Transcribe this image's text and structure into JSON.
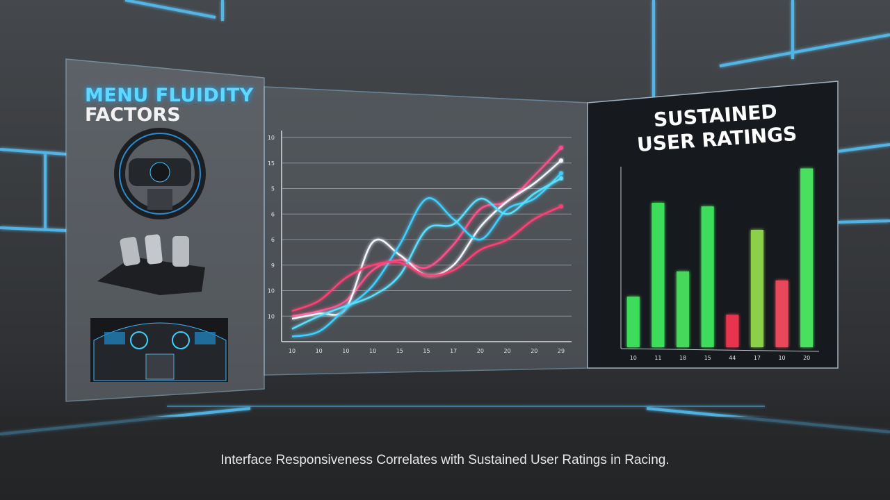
{
  "left_panel": {
    "title_line1": "MENU FLUIDITY",
    "title_line2": "FACTORS"
  },
  "chart_data": [
    {
      "type": "line",
      "categories": [
        "10",
        "10",
        "10",
        "10",
        "15",
        "15",
        "17",
        "20",
        "20",
        "20",
        "29"
      ],
      "ylim": [
        0,
        8
      ],
      "yticks": [
        {
          "value": 1,
          "label": "10"
        },
        {
          "value": 2,
          "label": "10"
        },
        {
          "value": 3,
          "label": "9"
        },
        {
          "value": 4,
          "label": "6"
        },
        {
          "value": 5,
          "label": "6"
        },
        {
          "value": 6,
          "label": "5"
        },
        {
          "value": 7,
          "label": "15"
        },
        {
          "value": 8,
          "label": "10"
        }
      ],
      "grid": true,
      "series": [
        {
          "color": "#ff4f8b",
          "values": [
            1.0,
            1.2,
            1.6,
            2.8,
            3.2,
            2.9,
            3.8,
            5.2,
            5.5,
            6.5,
            7.6
          ]
        },
        {
          "color": "#f4f6ff",
          "values": [
            0.9,
            1.1,
            1.3,
            3.9,
            3.4,
            2.6,
            3.0,
            4.5,
            5.5,
            6.2,
            7.1
          ]
        },
        {
          "color": "#3fd0ff",
          "values": [
            0.2,
            0.4,
            1.3,
            2.2,
            3.8,
            5.6,
            4.8,
            4.0,
            5.2,
            5.6,
            6.6
          ]
        },
        {
          "color": "#5ae0ff",
          "values": [
            0.5,
            1.0,
            1.4,
            1.8,
            2.6,
            4.4,
            4.6,
            5.6,
            5.0,
            5.8,
            6.4
          ]
        },
        {
          "color": "#ff3f74",
          "values": [
            1.2,
            1.6,
            2.5,
            3.0,
            3.1,
            2.6,
            2.8,
            3.6,
            4.0,
            4.8,
            5.3
          ]
        }
      ]
    },
    {
      "type": "bar",
      "title": "SUSTAINED USER RATINGS",
      "categories": [
        "10",
        "11",
        "18",
        "15",
        "44",
        "17",
        "10",
        "20"
      ],
      "values": [
        2.8,
        8.0,
        4.2,
        7.8,
        1.8,
        6.5,
        3.7,
        9.9
      ],
      "colors": [
        "#3ddc5a",
        "#3ddc5a",
        "#45d85a",
        "#3ddc5a",
        "#e8344e",
        "#8ccf4a",
        "#e8485a",
        "#48e060"
      ],
      "ylim": [
        0,
        10
      ]
    }
  ],
  "caption": "Interface Responsiveness Correlates with Sustained User Ratings in Racing."
}
